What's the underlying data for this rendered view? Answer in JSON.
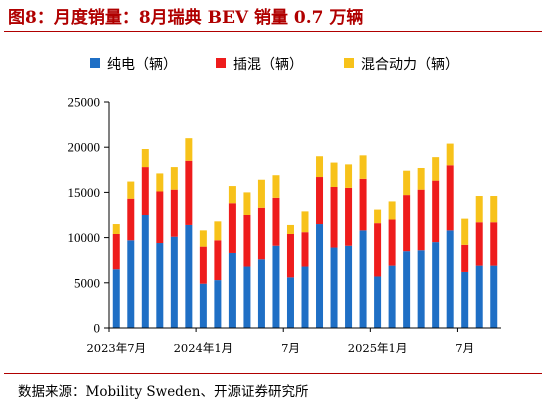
{
  "title": "图8：月度销量：8月瑞典 BEV 销量 0.7 万辆",
  "source": "数据来源：Mobility Sweden、开源证券研究所",
  "colors": {
    "title": "#b00000",
    "bev": "#1f6fc5",
    "phev": "#ee1c1c",
    "hybrid": "#f7c21a"
  },
  "chart_data": {
    "type": "bar",
    "stacked": true,
    "title": "",
    "xlabel": "",
    "ylabel": "",
    "ylim": [
      0,
      25000
    ],
    "yticks": [
      0,
      5000,
      10000,
      15000,
      20000,
      25000
    ],
    "grid": false,
    "legend_position": "top",
    "x_tick_labels": [
      {
        "index": 0,
        "label": "2023年7月"
      },
      {
        "index": 6,
        "label": "2024年1月"
      },
      {
        "index": 12,
        "label": "7月"
      },
      {
        "index": 18,
        "label": "2025年1月"
      },
      {
        "index": 24,
        "label": "7月"
      }
    ],
    "categories": [
      "2023-07",
      "2023-08",
      "2023-09",
      "2023-10",
      "2023-11",
      "2023-12",
      "2024-01",
      "2024-02",
      "2024-03",
      "2024-04",
      "2024-05",
      "2024-06",
      "2024-07",
      "2024-08",
      "2024-09",
      "2024-10",
      "2024-11",
      "2024-12",
      "2025-01",
      "2025-02",
      "2025-03",
      "2025-04",
      "2025-05",
      "2025-06",
      "2025-07",
      "2025-08",
      "2025-09"
    ],
    "series": [
      {
        "name": "纯电（辆）",
        "values": [
          6500,
          9700,
          12500,
          9400,
          10100,
          11400,
          4900,
          5300,
          8300,
          6800,
          7600,
          9100,
          5600,
          6800,
          11500,
          8900,
          9100,
          10800,
          5700,
          6900,
          8500,
          8600,
          9500,
          10800,
          6200,
          6900,
          6900
        ]
      },
      {
        "name": "插混（辆）",
        "values": [
          3900,
          4600,
          5300,
          5700,
          5200,
          7100,
          4100,
          4400,
          5500,
          5700,
          5700,
          5300,
          4800,
          3800,
          5200,
          6700,
          6400,
          5700,
          5900,
          5100,
          6200,
          6700,
          6800,
          7200,
          3000,
          4800,
          4800
        ]
      },
      {
        "name": "混合动力（辆）",
        "values": [
          1100,
          1900,
          2000,
          2000,
          2500,
          2500,
          1800,
          2100,
          1900,
          2500,
          3100,
          2500,
          1000,
          2300,
          2300,
          2700,
          2600,
          2600,
          1500,
          2000,
          2700,
          2400,
          2600,
          2400,
          2900,
          2900,
          2900
        ]
      }
    ]
  }
}
